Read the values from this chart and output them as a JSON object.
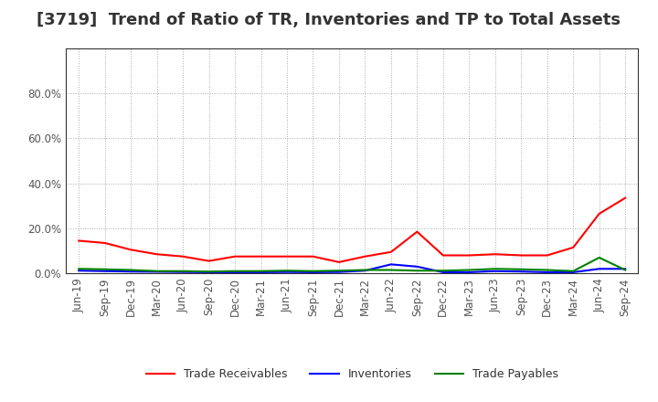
{
  "title": "[3719]  Trend of Ratio of TR, Inventories and TP to Total Assets",
  "x_labels": [
    "Jun-19",
    "Sep-19",
    "Dec-19",
    "Mar-20",
    "Jun-20",
    "Sep-20",
    "Dec-20",
    "Mar-21",
    "Jun-21",
    "Sep-21",
    "Dec-21",
    "Mar-22",
    "Jun-22",
    "Sep-22",
    "Dec-22",
    "Mar-23",
    "Jun-23",
    "Sep-23",
    "Dec-23",
    "Mar-24",
    "Jun-24",
    "Sep-24"
  ],
  "trade_receivables": [
    0.145,
    0.135,
    0.105,
    0.085,
    0.075,
    0.055,
    0.075,
    0.075,
    0.075,
    0.075,
    0.05,
    0.075,
    0.095,
    0.185,
    0.08,
    0.08,
    0.085,
    0.08,
    0.08,
    0.115,
    0.265,
    0.335
  ],
  "inventories": [
    0.012,
    0.01,
    0.008,
    0.007,
    0.006,
    0.005,
    0.005,
    0.005,
    0.006,
    0.005,
    0.006,
    0.012,
    0.04,
    0.03,
    0.005,
    0.005,
    0.01,
    0.008,
    0.005,
    0.005,
    0.02,
    0.02
  ],
  "trade_payables": [
    0.02,
    0.018,
    0.015,
    0.01,
    0.01,
    0.008,
    0.01,
    0.01,
    0.012,
    0.01,
    0.012,
    0.015,
    0.015,
    0.012,
    0.012,
    0.015,
    0.02,
    0.018,
    0.015,
    0.01,
    0.07,
    0.015
  ],
  "tr_color": "#ff0000",
  "inv_color": "#0000ff",
  "tp_color": "#008000",
  "ylim": [
    0.0,
    1.0
  ],
  "yticks": [
    0.0,
    0.2,
    0.4,
    0.6,
    0.8
  ],
  "background_color": "#ffffff",
  "grid_color": "#aaaaaa",
  "title_fontsize": 13,
  "tick_fontsize": 8.5,
  "legend_fontsize": 9
}
